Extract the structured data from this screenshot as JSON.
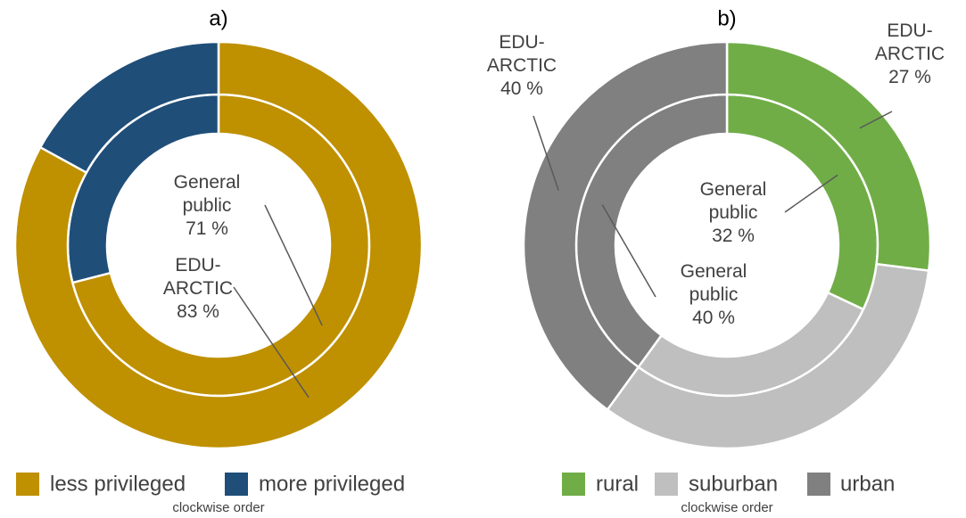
{
  "chart_data": [
    {
      "type": "donut",
      "title": "a)",
      "note": "clockwise order",
      "categories": [
        "less privileged",
        "more privileged"
      ],
      "colors": [
        "#bf9000",
        "#1f4e79"
      ],
      "series": [
        {
          "name": "General public",
          "values": [
            71,
            29
          ],
          "value_labels": [
            "71 %",
            null
          ]
        },
        {
          "name": "EDU-ARCTIC",
          "values": [
            83,
            17
          ],
          "value_labels": [
            "83 %",
            null
          ]
        }
      ]
    },
    {
      "type": "donut",
      "title": "b)",
      "note": "clockwise order",
      "categories": [
        "rural",
        "suburban",
        "urban"
      ],
      "colors": [
        "#70ad47",
        "#bfbfbf",
        "#808080"
      ],
      "series": [
        {
          "name": "General public",
          "values": [
            32,
            28,
            40
          ],
          "value_labels": [
            "32 %",
            null,
            "40 %"
          ]
        },
        {
          "name": "EDU-ARCTIC",
          "values": [
            27,
            33,
            40
          ],
          "value_labels": [
            "27 %",
            null,
            "40 %"
          ]
        }
      ]
    }
  ]
}
